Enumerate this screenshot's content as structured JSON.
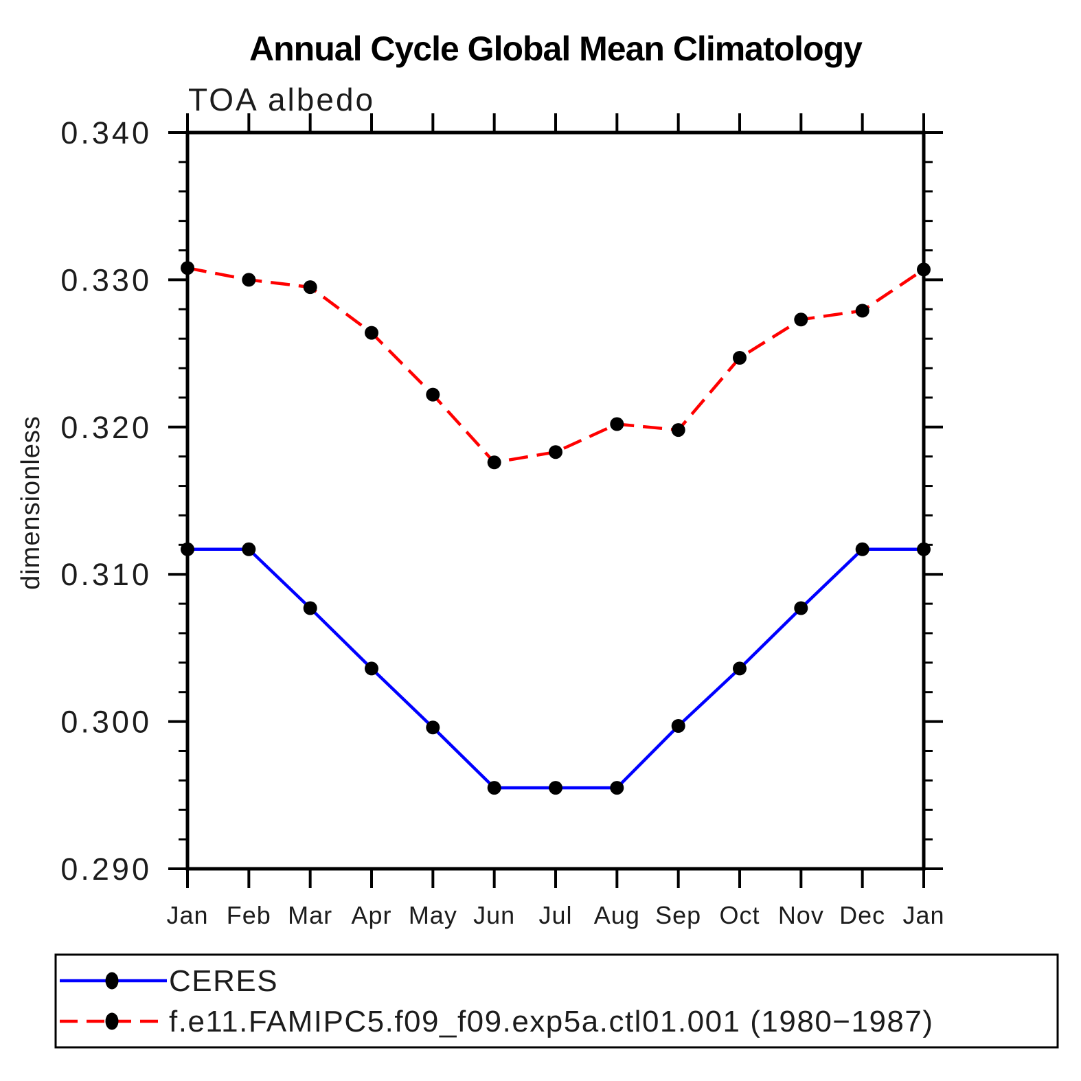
{
  "title": "Annual Cycle Global Mean Climatology",
  "subtitle": "TOA albedo",
  "chart_data": {
    "type": "line",
    "title": "Annual Cycle Global Mean Climatology",
    "subtitle": "TOA albedo",
    "xlabel": "",
    "ylabel": "dimensionless",
    "categories": [
      "Jan",
      "Feb",
      "Mar",
      "Apr",
      "May",
      "Jun",
      "Jul",
      "Aug",
      "Sep",
      "Oct",
      "Nov",
      "Dec",
      "Jan"
    ],
    "ylim": [
      0.29,
      0.34
    ],
    "ytick_values": [
      0.29,
      0.3,
      0.31,
      0.32,
      0.33,
      0.34
    ],
    "ytick_labels": [
      "0.290",
      "0.300",
      "0.310",
      "0.320",
      "0.330",
      "0.340"
    ],
    "ytick_minor_step": 0.002,
    "grid": false,
    "legend_position": "bottom-box",
    "marker_color": "#000000",
    "series": [
      {
        "name": "CERES",
        "color": "#0000ff",
        "style": "solid",
        "marker": "circle",
        "values": [
          0.3117,
          0.3117,
          0.3077,
          0.3036,
          0.2996,
          0.2955,
          0.2955,
          0.2955,
          0.2997,
          0.3036,
          0.3077,
          0.3117,
          0.3117
        ]
      },
      {
        "name": "f.e11.FAMIPC5.f09_f09.exp5a.ctl01.001 (1980−1987)",
        "color": "#ff0000",
        "style": "dashed",
        "marker": "circle",
        "values": [
          0.3308,
          0.33,
          0.3295,
          0.3264,
          0.3222,
          0.3176,
          0.3183,
          0.3202,
          0.3198,
          0.3247,
          0.3273,
          0.3279,
          0.3307
        ]
      }
    ]
  },
  "legend": {
    "entries": [
      {
        "label": "CERES"
      },
      {
        "label": "f.e11.FAMIPC5.f09_f09.exp5a.ctl01.001 (1980−1987)"
      }
    ]
  }
}
